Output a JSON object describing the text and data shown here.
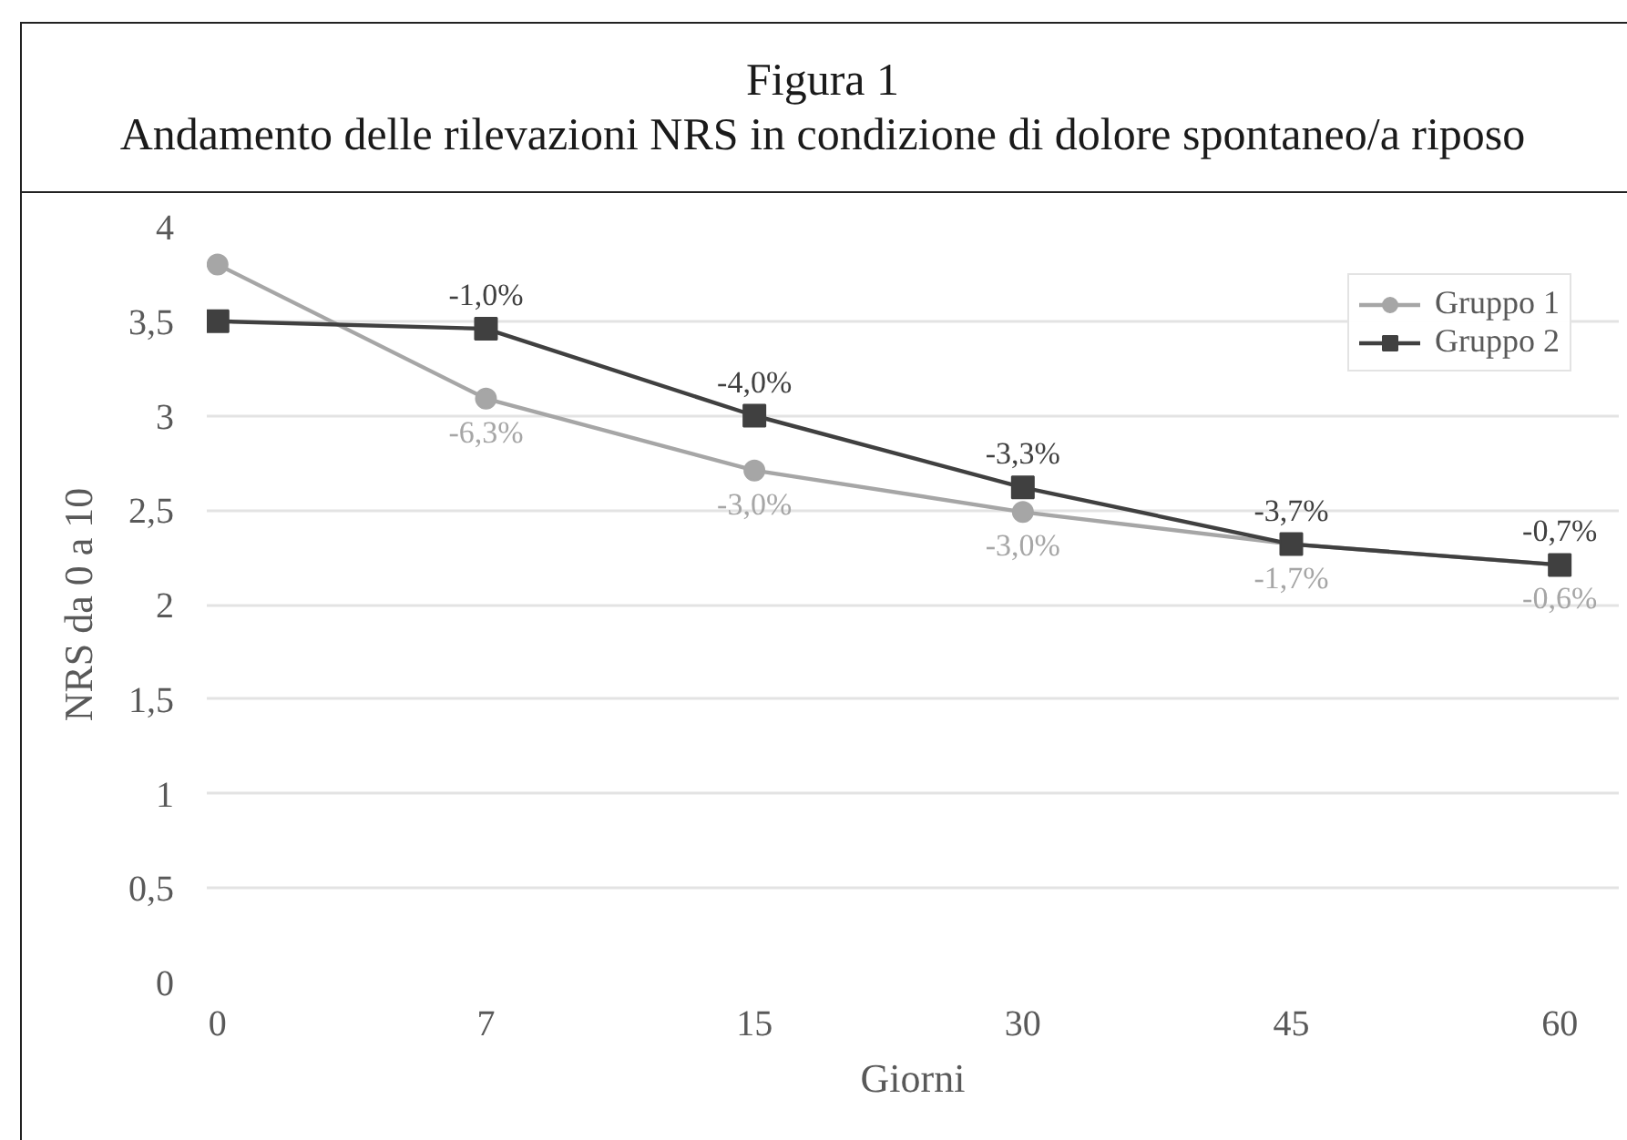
{
  "chart_data": {
    "type": "line",
    "title": "Figura 1",
    "subtitle": "Andamento delle rilevazioni NRS in condizione di dolore spontaneo/a riposo",
    "xlabel": "Giorni",
    "ylabel": "NRS da 0 a 10",
    "categories": [
      "0",
      "7",
      "15",
      "30",
      "45",
      "60"
    ],
    "ylim": [
      0,
      4
    ],
    "yticks": [
      0,
      {
        "value": 0.5,
        "label": "0,5"
      },
      1,
      {
        "value": 1.5,
        "label": "1,5"
      },
      2,
      {
        "value": 2.5,
        "label": "2,5"
      },
      3,
      {
        "value": 3.5,
        "label": "3,5"
      },
      4
    ],
    "grid": "y",
    "legend": "top right",
    "line_style": "solid",
    "series": [
      {
        "name": "Gruppo 1",
        "color": "#a6a6a6",
        "marker": "circle",
        "values": [
          3.8,
          3.09,
          2.71,
          2.49,
          2.32,
          2.21
        ]
      },
      {
        "name": "Gruppo 2",
        "color": "#404040",
        "marker": "square",
        "values": [
          3.5,
          3.46,
          3.0,
          2.62,
          2.32,
          2.21
        ]
      }
    ],
    "annotations": [
      {
        "text": "-6,3%",
        "x": "7",
        "y": 3.09
      },
      {
        "text": "-3,0%",
        "x": "15",
        "y": 2.71
      },
      {
        "text": "-3,0%",
        "x": "30",
        "y": 2.49
      },
      {
        "text": "-1,7%",
        "x": "45",
        "y": 2.32
      },
      {
        "text": "-0,6%",
        "x": "60",
        "y": 2.21
      },
      {
        "text": "-1,0%",
        "x": "7",
        "y": 3.46
      },
      {
        "text": "-4,0%",
        "x": "15",
        "y": 3.0
      },
      {
        "text": "-3,3%",
        "x": "30",
        "y": 2.62
      },
      {
        "text": "-3,7%",
        "x": "45",
        "y": 2.32
      },
      {
        "text": "-0,7%",
        "x": "60",
        "y": 2.21
      }
    ]
  }
}
